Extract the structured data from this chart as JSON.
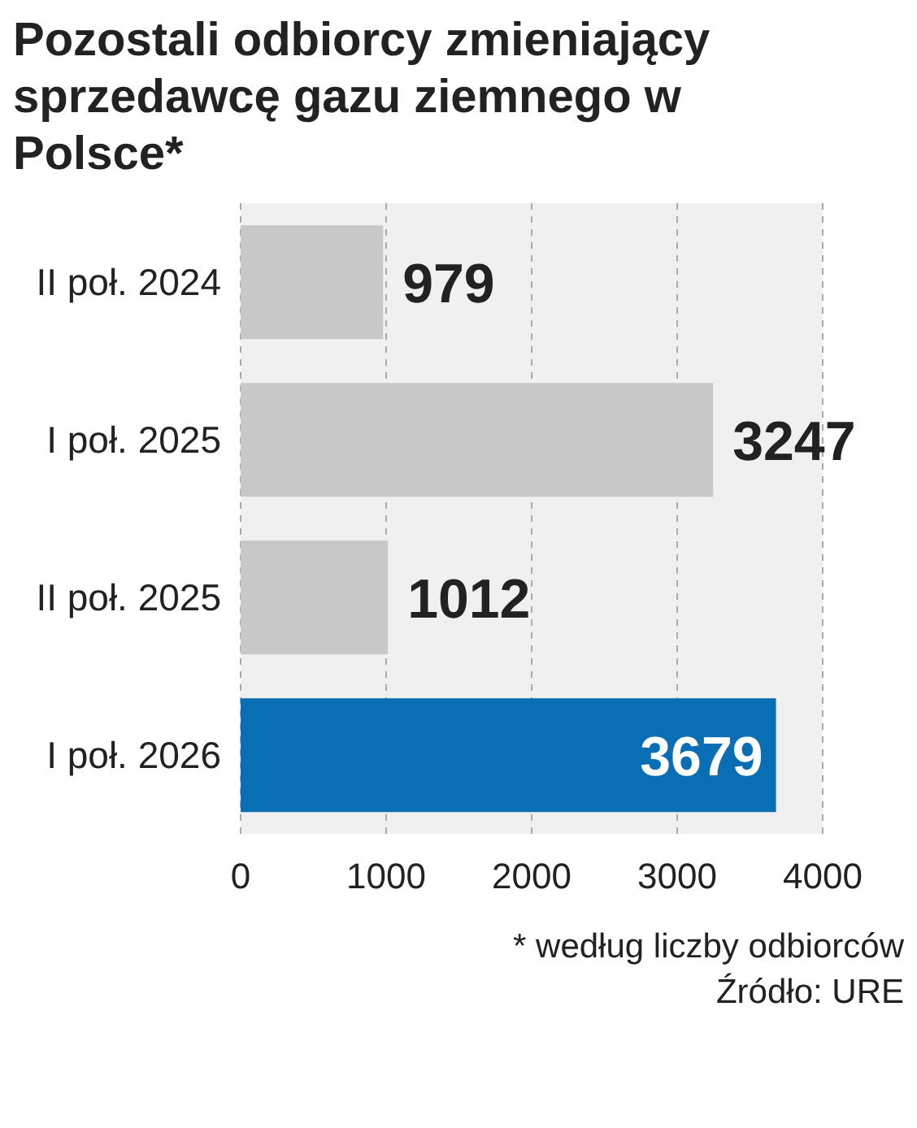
{
  "chart_data": {
    "type": "bar",
    "orientation": "horizontal",
    "title": "Pozostali odbiorcy zmieniający sprzedawcę gazu ziemnego w Polsce*",
    "categories": [
      "II poł. 2024",
      "I poł. 2025",
      "II poł. 2025",
      "I poł. 2026"
    ],
    "values": [
      979,
      3247,
      1012,
      3679
    ],
    "colors": [
      "#c8c8c8",
      "#c8c8c8",
      "#c8c8c8",
      "#0a6eb4"
    ],
    "xlim": [
      0,
      4000
    ],
    "xticks": [
      0,
      1000,
      2000,
      3000,
      4000
    ],
    "grid": "x",
    "data_labels": true,
    "annotations": [
      "* według liczby odbiorców",
      "Źródło: URE"
    ]
  }
}
